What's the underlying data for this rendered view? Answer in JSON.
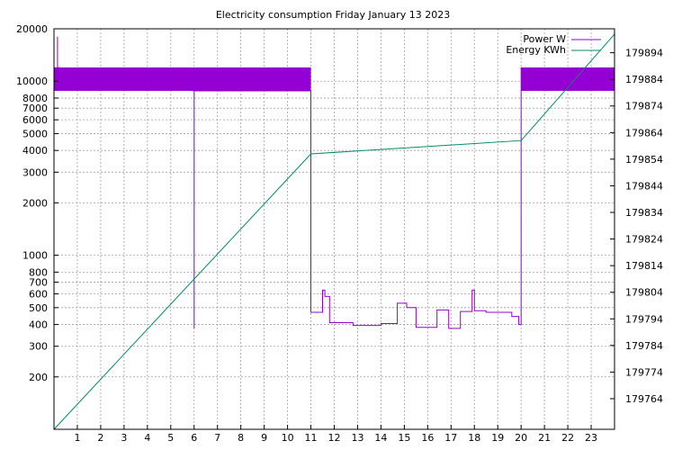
{
  "chart_data": {
    "type": "line",
    "title": "Electricity consumption Friday January 13 2023",
    "x_ticks": [
      1,
      2,
      3,
      4,
      5,
      6,
      7,
      8,
      9,
      10,
      11,
      12,
      13,
      14,
      15,
      16,
      17,
      18,
      19,
      20,
      21,
      22,
      23
    ],
    "xlim": [
      0,
      24
    ],
    "y_left": {
      "scale": "log",
      "lim": [
        100,
        20000
      ],
      "ticks": [
        200,
        300,
        400,
        500,
        600,
        700,
        800,
        1000,
        2000,
        3000,
        4000,
        5000,
        6000,
        7000,
        8000,
        10000,
        20000
      ],
      "tick_labels": [
        "200",
        "300",
        "400",
        "500",
        "600",
        "700",
        "800",
        "1000",
        "2000",
        "3000",
        "4000",
        "5000",
        "6000",
        "7000",
        "8000",
        "10000",
        "20000"
      ]
    },
    "y_right": {
      "scale": "linear",
      "lim": [
        179752.5,
        179903
      ],
      "ticks": [
        179764,
        179774,
        179784,
        179794,
        179804,
        179814,
        179824,
        179834,
        179844,
        179854,
        179864,
        179874,
        179884,
        179894
      ],
      "tick_labels": [
        "179764",
        "179774",
        "179784",
        "179794",
        "179804",
        "179814",
        "179824",
        "179834",
        "179844",
        "179854",
        "179864",
        "179874",
        "179884",
        "179894"
      ]
    },
    "grid": true,
    "legend_position": "top-right",
    "series": [
      {
        "name": "Power W",
        "axis": "left",
        "color": "#9400d3",
        "band_ranges": [
          [
            0,
            11
          ],
          [
            20,
            24
          ]
        ],
        "band_range": [
          8800,
          12000
        ],
        "points": [
          [
            0.15,
            18000
          ],
          [
            0.15,
            12000
          ],
          [
            6.0,
            8800
          ],
          [
            6.0,
            380
          ],
          [
            6.0,
            8800
          ],
          [
            11.0,
            8800
          ],
          [
            11.0,
            470
          ],
          [
            11.5,
            470
          ],
          [
            11.5,
            630
          ],
          [
            11.6,
            630
          ],
          [
            11.6,
            580
          ],
          [
            11.8,
            580
          ],
          [
            11.8,
            410
          ],
          [
            12.8,
            410
          ],
          [
            12.8,
            395
          ],
          [
            14.0,
            395
          ],
          [
            14.0,
            405
          ],
          [
            14.7,
            405
          ],
          [
            14.7,
            530
          ],
          [
            15.1,
            530
          ],
          [
            15.1,
            500
          ],
          [
            15.5,
            500
          ],
          [
            15.5,
            385
          ],
          [
            16.4,
            385
          ],
          [
            16.4,
            485
          ],
          [
            16.9,
            485
          ],
          [
            16.9,
            380
          ],
          [
            17.4,
            380
          ],
          [
            17.4,
            475
          ],
          [
            17.9,
            475
          ],
          [
            17.9,
            630
          ],
          [
            18.0,
            630
          ],
          [
            18.0,
            480
          ],
          [
            18.5,
            480
          ],
          [
            18.5,
            470
          ],
          [
            19.6,
            470
          ],
          [
            19.6,
            445
          ],
          [
            19.9,
            445
          ],
          [
            19.9,
            400
          ],
          [
            20.0,
            400
          ],
          [
            20.0,
            12000
          ]
        ]
      },
      {
        "name": "Energy KWh",
        "axis": "right",
        "color": "#008b6b",
        "points": [
          [
            0,
            179752.5
          ],
          [
            11.0,
            179856
          ],
          [
            20.0,
            179861
          ],
          [
            24.0,
            179901
          ]
        ]
      }
    ]
  }
}
